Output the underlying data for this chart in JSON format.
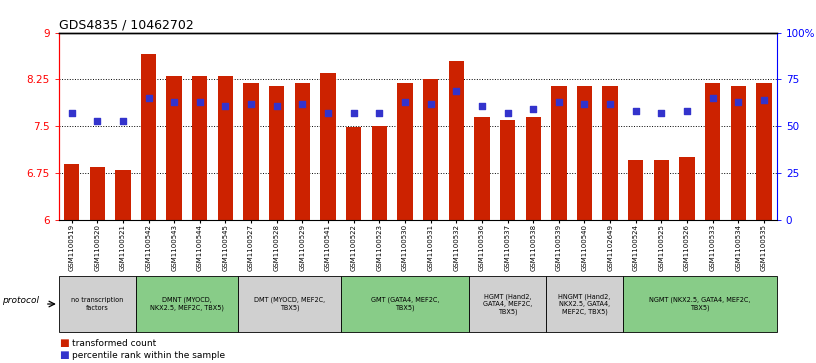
{
  "title": "GDS4835 / 10462702",
  "samples": [
    "GSM1100519",
    "GSM1100520",
    "GSM1100521",
    "GSM1100542",
    "GSM1100543",
    "GSM1100544",
    "GSM1100545",
    "GSM1100527",
    "GSM1100528",
    "GSM1100529",
    "GSM1100541",
    "GSM1100522",
    "GSM1100523",
    "GSM1100530",
    "GSM1100531",
    "GSM1100532",
    "GSM1100536",
    "GSM1100537",
    "GSM1100538",
    "GSM1100539",
    "GSM1100540",
    "GSM1102649",
    "GSM1100524",
    "GSM1100525",
    "GSM1100526",
    "GSM1100533",
    "GSM1100534",
    "GSM1100535"
  ],
  "bar_values": [
    6.9,
    6.85,
    6.8,
    8.65,
    8.3,
    8.3,
    8.3,
    8.2,
    8.15,
    8.2,
    8.35,
    7.48,
    7.5,
    8.2,
    8.25,
    8.55,
    7.65,
    7.6,
    7.65,
    8.15,
    8.15,
    8.15,
    6.95,
    6.95,
    7.0,
    8.2,
    8.15,
    8.2
  ],
  "percentile_values": [
    57,
    53,
    53,
    65,
    63,
    63,
    61,
    62,
    61,
    62,
    57,
    57,
    57,
    63,
    62,
    69,
    61,
    57,
    59,
    63,
    62,
    62,
    58,
    57,
    58,
    65,
    63,
    64
  ],
  "ylim_left": [
    6.0,
    9.0
  ],
  "ylim_right": [
    0,
    100
  ],
  "yticks_left": [
    6.0,
    6.75,
    7.5,
    8.25,
    9.0
  ],
  "ytick_labels_left": [
    "6",
    "6.75",
    "7.5",
    "8.25",
    "9"
  ],
  "yticks_right": [
    0,
    25,
    50,
    75,
    100
  ],
  "ytick_labels_right": [
    "0",
    "25",
    "50",
    "75",
    "100%"
  ],
  "dotted_lines": [
    6.75,
    7.5,
    8.25
  ],
  "bar_color": "#cc2200",
  "square_color": "#3333cc",
  "protocol_groups": [
    {
      "label": "no transcription\nfactors",
      "start": 0,
      "end": 2,
      "color": "#d0d0d0"
    },
    {
      "label": "DMNT (MYOCD,\nNKX2.5, MEF2C, TBX5)",
      "start": 3,
      "end": 6,
      "color": "#88cc88"
    },
    {
      "label": "DMT (MYOCD, MEF2C,\nTBX5)",
      "start": 7,
      "end": 10,
      "color": "#d0d0d0"
    },
    {
      "label": "GMT (GATA4, MEF2C,\nTBX5)",
      "start": 11,
      "end": 15,
      "color": "#88cc88"
    },
    {
      "label": "HGMT (Hand2,\nGATA4, MEF2C,\nTBX5)",
      "start": 16,
      "end": 18,
      "color": "#d0d0d0"
    },
    {
      "label": "HNGMT (Hand2,\nNKX2.5, GATA4,\nMEF2C, TBX5)",
      "start": 19,
      "end": 21,
      "color": "#d0d0d0"
    },
    {
      "label": "NGMT (NKX2.5, GATA4, MEF2C,\nTBX5)",
      "start": 22,
      "end": 27,
      "color": "#88cc88"
    }
  ]
}
